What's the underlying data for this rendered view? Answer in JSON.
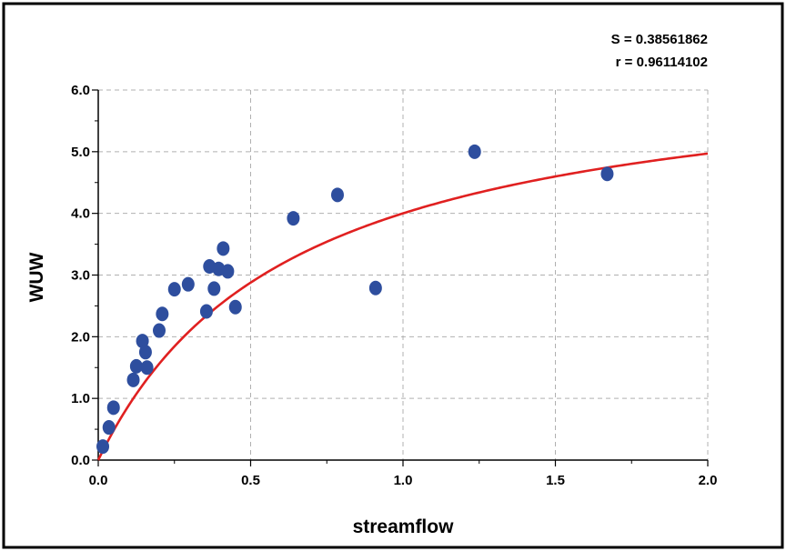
{
  "chart_data": {
    "type": "scatter",
    "title": "",
    "xlabel": "streamflow",
    "ylabel": "WUW",
    "xlim": [
      0,
      2
    ],
    "ylim": [
      0,
      6
    ],
    "x_ticks": [
      "0.0",
      "0.5",
      "1.0",
      "1.5",
      "2.0"
    ],
    "x_tick_values": [
      0,
      0.5,
      1.0,
      1.5,
      2.0
    ],
    "y_ticks": [
      "0.0",
      "1.0",
      "2.0",
      "3.0",
      "4.0",
      "5.0",
      "6.0"
    ],
    "y_tick_values": [
      0,
      1,
      2,
      3,
      4,
      5,
      6
    ],
    "grid": true,
    "annotations": [
      "S = 0.38561862",
      "r = 0.96114102"
    ],
    "series": [
      {
        "type": "scatter",
        "color": "#2E4E9E",
        "points": [
          {
            "x": 0.015,
            "y": 0.22
          },
          {
            "x": 0.035,
            "y": 0.53
          },
          {
            "x": 0.05,
            "y": 0.85
          },
          {
            "x": 0.115,
            "y": 1.3
          },
          {
            "x": 0.125,
            "y": 1.52
          },
          {
            "x": 0.145,
            "y": 1.93
          },
          {
            "x": 0.155,
            "y": 1.75
          },
          {
            "x": 0.16,
            "y": 1.5
          },
          {
            "x": 0.2,
            "y": 2.1
          },
          {
            "x": 0.21,
            "y": 2.37
          },
          {
            "x": 0.25,
            "y": 2.77
          },
          {
            "x": 0.295,
            "y": 2.85
          },
          {
            "x": 0.355,
            "y": 2.41
          },
          {
            "x": 0.365,
            "y": 3.14
          },
          {
            "x": 0.38,
            "y": 2.78
          },
          {
            "x": 0.395,
            "y": 3.1
          },
          {
            "x": 0.41,
            "y": 3.43
          },
          {
            "x": 0.425,
            "y": 3.06
          },
          {
            "x": 0.45,
            "y": 2.48
          },
          {
            "x": 0.64,
            "y": 3.92
          },
          {
            "x": 0.785,
            "y": 4.3
          },
          {
            "x": 0.91,
            "y": 2.79
          },
          {
            "x": 1.235,
            "y": 5.0
          },
          {
            "x": 1.67,
            "y": 4.64
          }
        ]
      },
      {
        "type": "line",
        "color": "#E02020",
        "model": "y = a*x/(b+x)",
        "params": {
          "a": 6.56,
          "b": 0.64
        }
      }
    ]
  }
}
